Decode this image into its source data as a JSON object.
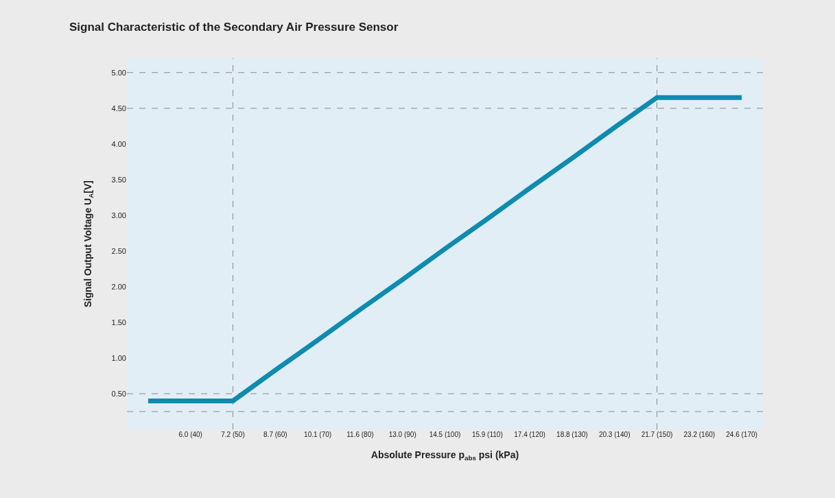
{
  "chart_data": {
    "type": "line",
    "title": "Signal Characteristic of the Secondary Air Pressure Sensor",
    "xlabel": "Absolute Pressure p$_{abs}$ psi (kPa)",
    "ylabel": "Signal Output Voltage U$_{A}$[V]",
    "categories": [
      null,
      "6.0 (40)",
      "7.2 (50)",
      "8.7 (60)",
      "10.1 (70)",
      "11.6 (80)",
      "13.0 (90)",
      "14.5 (100)",
      "15.9 (110)",
      "17.4 (120)",
      "18.8 (130)",
      "20.3 (140)",
      "21.7 (150)",
      "23.2 (160)",
      "24.6 (170)"
    ],
    "series": [
      {
        "color": "#0f8bb0",
        "values": [
          0.4,
          0.4,
          0.4,
          0.83,
          1.25,
          1.68,
          2.1,
          2.53,
          2.95,
          3.38,
          3.8,
          4.23,
          4.65,
          4.65,
          4.65
        ]
      }
    ],
    "ylim": [
      0,
      5.2
    ],
    "yticks": [
      {
        "value": 0.5,
        "label": "0.50"
      },
      {
        "value": 1,
        "label": "1.00"
      },
      {
        "value": 1.5,
        "label": "1.50"
      },
      {
        "value": 2,
        "label": "2.00"
      },
      {
        "value": 2.5,
        "label": "2.50"
      },
      {
        "value": 3,
        "label": "3.00"
      },
      {
        "value": 3.5,
        "label": "3.50"
      },
      {
        "value": 4,
        "label": "4.00"
      },
      {
        "value": 4.5,
        "label": "4.50"
      },
      {
        "value": 5,
        "label": "5.00"
      }
    ],
    "ref_lines": [
      {
        "axis": "x",
        "value": "7.2 (50)",
        "line_style": "dashed",
        "color": "#888888"
      },
      {
        "axis": "x",
        "value": "21.7 (150)",
        "line_style": "dashed",
        "color": "#888888"
      },
      {
        "axis": "y",
        "value": 0.25,
        "line_style": "dashed",
        "color": "#888888"
      },
      {
        "axis": "y",
        "value": 0.5,
        "line_style": "dashed",
        "color": "#888888"
      },
      {
        "axis": "y",
        "value": 4.5,
        "line_style": "dashed",
        "color": "#888888"
      },
      {
        "axis": "y",
        "value": 5.0,
        "line_style": "dashed",
        "color": "#888888"
      }
    ],
    "grid": false,
    "marker": "none",
    "line_style": "solid"
  }
}
